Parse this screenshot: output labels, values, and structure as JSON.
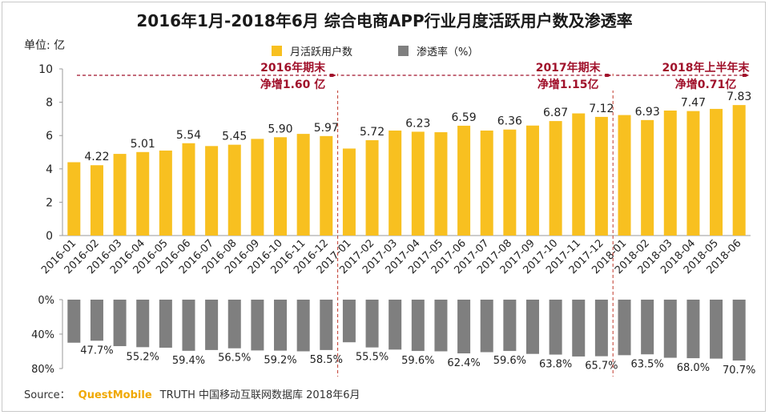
{
  "title": "2016年1月-2018年6月 综合电商APP行业月度活跃用户数及渗透率",
  "unit_label": "单位: 亿",
  "colors": {
    "bar": "#f8c020",
    "pen": "#7f7f7f",
    "annotation": "#a0102a",
    "divider": "#c0392b",
    "axis": "#999999",
    "text": "#222222"
  },
  "source": {
    "prefix": "Source：",
    "brand": "QuestMobile",
    "text": "TRUTH 中国移动互联网数据库 2018年6月"
  },
  "annotations": [
    {
      "line1": "2016年期末",
      "line2": "净增1.60 亿"
    },
    {
      "line1": "2017年期末",
      "line2": "净增1.15亿"
    },
    {
      "line1": "2018年上半年末",
      "line2": "净增0.71亿"
    }
  ],
  "chart_data": {
    "type": "bar",
    "categories": [
      "2016-01",
      "2016-02",
      "2016-03",
      "2016-04",
      "2016-05",
      "2016-06",
      "2016-07",
      "2016-08",
      "2016-09",
      "2016-10",
      "2016-11",
      "2016-12",
      "2017-01",
      "2017-02",
      "2017-03",
      "2017-04",
      "2017-05",
      "2017-06",
      "2017-07",
      "2017-08",
      "2017-09",
      "2017-10",
      "2017-11",
      "2017-12",
      "2018-01",
      "2018-02",
      "2018-03",
      "2018-04",
      "2018-05",
      "2018-06"
    ],
    "series": [
      {
        "name": "月活跃用户数",
        "values": [
          4.4,
          4.22,
          4.9,
          5.01,
          5.1,
          5.54,
          5.37,
          5.45,
          5.8,
          5.9,
          6.1,
          5.97,
          5.22,
          5.72,
          6.3,
          6.23,
          6.2,
          6.59,
          6.3,
          6.36,
          6.6,
          6.87,
          7.33,
          7.12,
          7.23,
          6.93,
          7.5,
          7.47,
          7.6,
          7.83
        ],
        "labels": [
          "",
          "4.22",
          "",
          "5.01",
          "",
          "5.54",
          "",
          "5.45",
          "",
          "5.90",
          "",
          "5.97",
          "",
          "5.72",
          "",
          "6.23",
          "",
          "6.59",
          "",
          "6.36",
          "",
          "6.87",
          "",
          "7.12",
          "",
          "6.93",
          "",
          "7.47",
          "",
          "7.83"
        ]
      },
      {
        "name": "渗透率（%）",
        "values": [
          50.0,
          47.7,
          54.0,
          55.2,
          55.8,
          59.4,
          58.5,
          56.5,
          59.0,
          59.2,
          60.0,
          58.5,
          49.5,
          55.5,
          58.0,
          59.6,
          60.0,
          62.4,
          61.0,
          59.6,
          63.0,
          63.8,
          66.0,
          65.7,
          64.5,
          63.5,
          67.5,
          68.0,
          68.5,
          70.7
        ],
        "labels": [
          "",
          "47.7%",
          "",
          "55.2%",
          "",
          "59.4%",
          "",
          "56.5%",
          "",
          "59.2%",
          "",
          "58.5%",
          "",
          "55.5%",
          "",
          "59.6%",
          "",
          "62.4%",
          "",
          "59.6%",
          "",
          "63.8%",
          "",
          "65.7%",
          "",
          "63.5%",
          "",
          "68.0%",
          "",
          "70.7%"
        ]
      }
    ],
    "ylim": [
      0,
      10
    ],
    "yticks": [
      "0",
      "2",
      "4",
      "6",
      "8",
      "10"
    ],
    "y2lim": [
      0,
      80
    ],
    "y2ticks": [
      "0%",
      "40%",
      "80%"
    ],
    "period_breaks_after": [
      "2016-12",
      "2017-12"
    ]
  }
}
